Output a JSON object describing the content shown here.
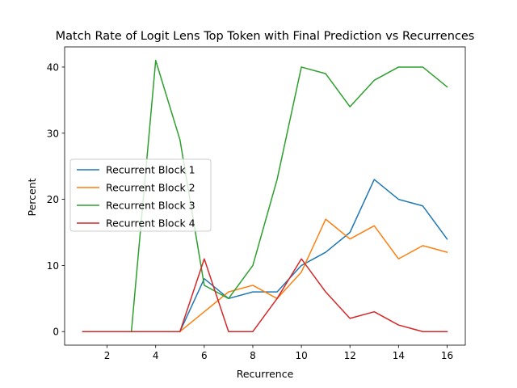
{
  "chart_data": {
    "type": "line",
    "title": "Match Rate of Logit Lens Top Token with Final Prediction vs Recurrences",
    "xlabel": "Recurrence",
    "ylabel": "Percent",
    "x": [
      1,
      2,
      3,
      4,
      5,
      6,
      7,
      8,
      9,
      10,
      11,
      12,
      13,
      14,
      15,
      16
    ],
    "xticks": [
      "2",
      "4",
      "6",
      "8",
      "10",
      "12",
      "14",
      "16"
    ],
    "yticks": [
      "0",
      "10",
      "20",
      "30",
      "40"
    ],
    "xlim": [
      0.25,
      16.75
    ],
    "ylim": [
      -2.05,
      43.05
    ],
    "grid": false,
    "legend_position": "center-left",
    "series": [
      {
        "name": "Recurrent Block 1",
        "color": "#1f77b4",
        "values": [
          0,
          0,
          0,
          0,
          0,
          8,
          5,
          6,
          6,
          10,
          12,
          15,
          23,
          20,
          19,
          14
        ]
      },
      {
        "name": "Recurrent Block 2",
        "color": "#ff7f0e",
        "values": [
          0,
          0,
          0,
          0,
          0,
          3,
          6,
          7,
          5,
          9,
          17,
          14,
          16,
          11,
          13,
          12
        ]
      },
      {
        "name": "Recurrent Block 3",
        "color": "#2ca02c",
        "values": [
          0,
          0,
          0,
          41,
          29,
          7,
          5,
          10,
          23,
          40,
          39,
          34,
          38,
          40,
          40,
          37
        ]
      },
      {
        "name": "Recurrent Block 4",
        "color": "#d62728",
        "values": [
          0,
          0,
          0,
          0,
          0,
          11,
          0,
          0,
          5,
          11,
          6,
          2,
          3,
          1,
          0,
          0
        ]
      }
    ]
  }
}
